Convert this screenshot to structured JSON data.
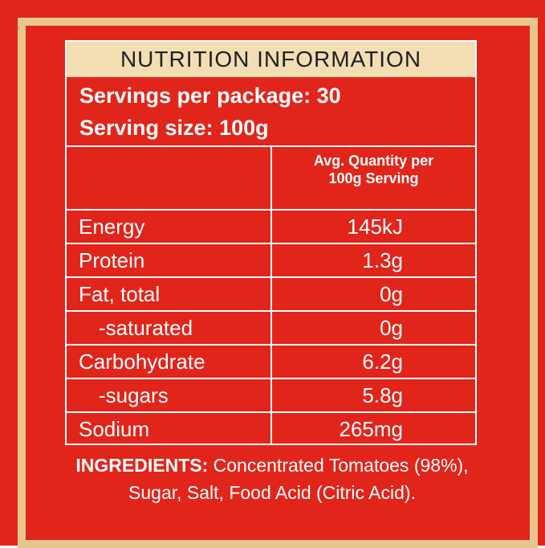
{
  "colors": {
    "background": "#e1251b",
    "frame": "#e6c58f",
    "title_band": "#f3deb4",
    "text": "#ffffff"
  },
  "title": "NUTRITION INFORMATION",
  "servings_per_package": "Servings per package: 30",
  "serving_size": "Serving size: 100g",
  "column_header_line1": "Avg. Quantity per",
  "column_header_line2": "100g Serving",
  "rows": [
    {
      "label": "Energy",
      "value": "145kJ"
    },
    {
      "label": "Protein",
      "value": "1.3g"
    },
    {
      "label": "Fat, total",
      "value": "0g"
    },
    {
      "label": "-saturated",
      "value": "0g"
    },
    {
      "label": "Carbohydrate",
      "value": "6.2g"
    },
    {
      "label": "-sugars",
      "value": "5.8g"
    },
    {
      "label": "Sodium",
      "value": "265mg"
    }
  ],
  "ingredients_label": "INGREDIENTS:",
  "ingredients_text": " Concentrated Tomatoes (98%), Sugar, Salt, Food Acid (Citric Acid)."
}
